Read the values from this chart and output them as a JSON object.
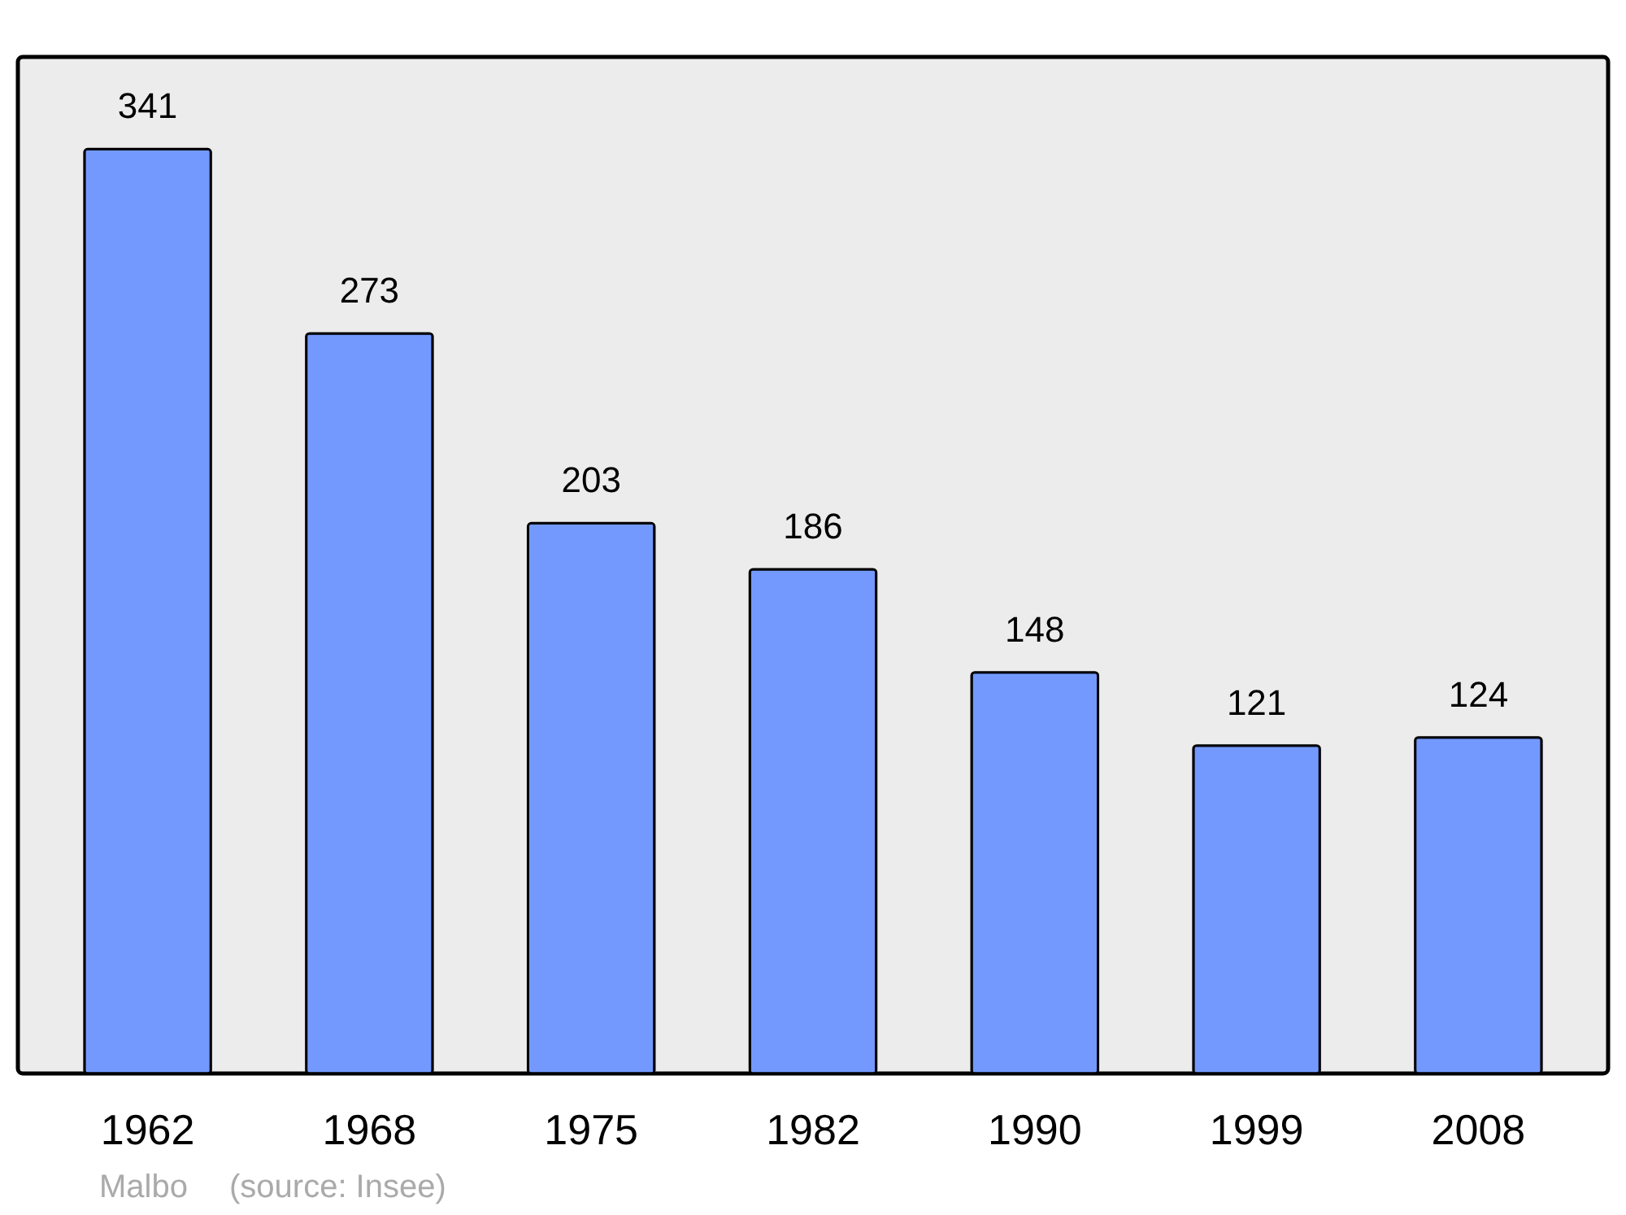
{
  "chart_data": {
    "type": "bar",
    "categories": [
      "1962",
      "1968",
      "1975",
      "1982",
      "1990",
      "1999",
      "2008"
    ],
    "values": [
      341,
      273,
      203,
      186,
      148,
      121,
      124
    ],
    "color": "#7399ff",
    "ylim": [
      0,
      375
    ],
    "tick_labels": "x",
    "data_labels": true,
    "grid": false,
    "annotations": [
      "Malbo",
      "(source: Insee)"
    ]
  }
}
